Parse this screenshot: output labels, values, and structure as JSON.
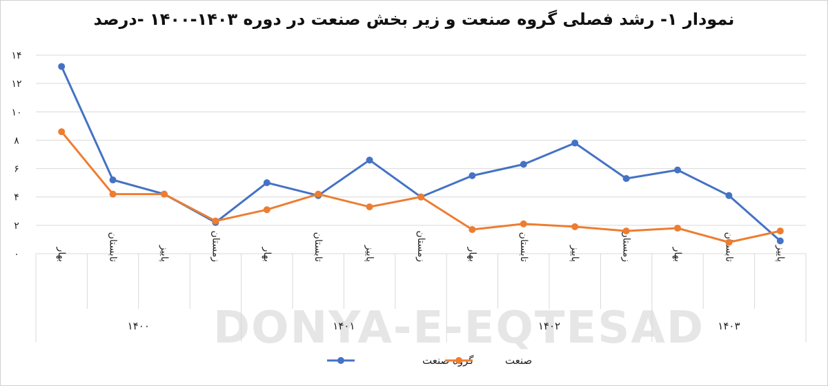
{
  "chart_data": {
    "type": "line",
    "title": "نمودار ۱- رشد فصلی گروه صنعت و زیر بخش صنعت در دوره ۱۴۰۳-۱۴۰۰ -درصد",
    "ylim": [
      0,
      14
    ],
    "y_ticks": [
      "۰",
      "۲",
      "۴",
      "۶",
      "۸",
      "۱۰",
      "۱۲",
      "۱۴"
    ],
    "y_tick_values": [
      0,
      2,
      4,
      6,
      8,
      10,
      12,
      14
    ],
    "categories": [
      "بهار",
      "تابستان",
      "پاییز",
      "زمستان",
      "بهار",
      "تابستان",
      "پاییز",
      "زمستان",
      "بهار",
      "تابستان",
      "پاییز",
      "زمستان",
      "بهار",
      "تابستان",
      "پاییز"
    ],
    "groups": [
      {
        "label": "۱۴۰۰",
        "count": 4
      },
      {
        "label": "۱۴۰۱",
        "count": 4
      },
      {
        "label": "۱۴۰۲",
        "count": 4
      },
      {
        "label": "۱۴۰۳",
        "count": 3
      }
    ],
    "series": [
      {
        "name": "گروه صنعت",
        "color": "#4472c4",
        "values": [
          13.2,
          5.2,
          4.2,
          2.2,
          5.0,
          4.1,
          6.6,
          4.0,
          5.5,
          6.3,
          7.8,
          5.3,
          5.9,
          4.1,
          0.9
        ]
      },
      {
        "name": "صنعت",
        "color": "#ed7d31",
        "values": [
          8.6,
          4.2,
          4.2,
          2.3,
          3.1,
          4.2,
          3.3,
          4.0,
          1.7,
          2.1,
          1.9,
          1.6,
          1.8,
          0.8,
          1.6
        ]
      }
    ],
    "grid": "horizontal",
    "legend": "bottom-center"
  },
  "watermark": {
    "text": "DONYA-E-EQTESAD"
  },
  "style": {
    "grid_color": "#d9d9d9",
    "axis_color": "#d9d9d9"
  }
}
